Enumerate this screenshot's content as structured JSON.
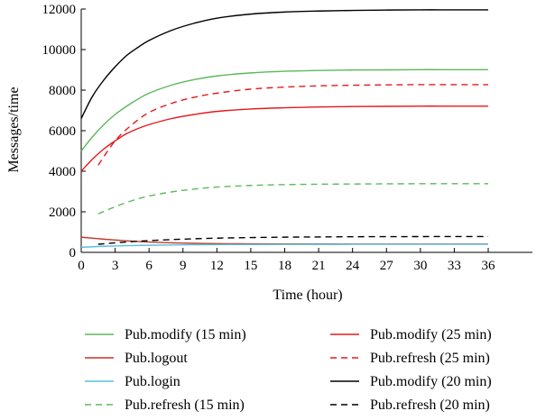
{
  "chart_data": {
    "type": "line",
    "title": "",
    "xlabel": "Time (hour)",
    "ylabel": "Messages/time",
    "xlim": [
      0,
      36
    ],
    "ylim": [
      0,
      12000
    ],
    "x_ticks": [
      0,
      3,
      6,
      9,
      12,
      15,
      18,
      21,
      24,
      27,
      30,
      33,
      36
    ],
    "y_ticks": [
      0,
      2000,
      4000,
      6000,
      8000,
      10000,
      12000
    ],
    "grid": false,
    "legend_position": "bottom",
    "series": [
      {
        "name": "Pub.modify (15 min)",
        "color": "#5cb85c",
        "dash": "solid",
        "x": [
          0,
          1,
          2,
          3,
          4,
          5,
          6,
          8,
          10,
          12,
          15,
          18,
          21,
          24,
          27,
          30,
          33,
          36
        ],
        "y": [
          5000,
          5700,
          6300,
          6800,
          7200,
          7550,
          7850,
          8250,
          8520,
          8700,
          8850,
          8930,
          8970,
          8990,
          9000,
          9010,
          9010,
          9010
        ]
      },
      {
        "name": "Pub.logout",
        "color": "#c0392b",
        "dash": "solid",
        "x": [
          0,
          2,
          4,
          6,
          8,
          10,
          12,
          15,
          18,
          21,
          24,
          27,
          30,
          33,
          36
        ],
        "y": [
          750,
          650,
          570,
          510,
          470,
          445,
          430,
          420,
          415,
          412,
          410,
          410,
          410,
          410,
          410
        ]
      },
      {
        "name": "Pub.login",
        "color": "#5bc0de",
        "dash": "solid",
        "x": [
          0,
          2,
          4,
          6,
          8,
          10,
          12,
          15,
          18,
          21,
          24,
          27,
          30,
          33,
          36
        ],
        "y": [
          250,
          300,
          330,
          350,
          365,
          375,
          382,
          388,
          392,
          394,
          395,
          396,
          396,
          396,
          396
        ]
      },
      {
        "name": "Pub.refresh (15 min)",
        "color": "#5cb85c",
        "dash": "dashed",
        "x": [
          1.5,
          3,
          4.5,
          6,
          8,
          10,
          12,
          15,
          18,
          21,
          24,
          27,
          30,
          33,
          36
        ],
        "y": [
          1900,
          2250,
          2550,
          2780,
          2980,
          3120,
          3220,
          3300,
          3340,
          3360,
          3370,
          3380,
          3385,
          3385,
          3385
        ]
      },
      {
        "name": "Pub.modify (25 min)",
        "color": "#e41a1c",
        "dash": "solid",
        "x": [
          0,
          1,
          2,
          3,
          4,
          5,
          6,
          8,
          10,
          12,
          15,
          18,
          21,
          24,
          27,
          30,
          33,
          36
        ],
        "y": [
          4000,
          4600,
          5100,
          5500,
          5850,
          6100,
          6300,
          6600,
          6800,
          6950,
          7070,
          7130,
          7170,
          7190,
          7200,
          7210,
          7210,
          7210
        ]
      },
      {
        "name": "Pub.refresh (25 min)",
        "color": "#e41a1c",
        "dash": "dashed",
        "x": [
          1.5,
          3,
          4.5,
          6,
          8,
          10,
          12,
          15,
          18,
          21,
          24,
          27,
          30,
          33,
          36
        ],
        "y": [
          4300,
          5500,
          6300,
          6900,
          7350,
          7650,
          7850,
          8050,
          8150,
          8210,
          8240,
          8260,
          8270,
          8270,
          8270
        ]
      },
      {
        "name": "Pub.modify (20 min)",
        "color": "#000000",
        "dash": "solid",
        "x": [
          0,
          1,
          2,
          3,
          4,
          5,
          6,
          8,
          10,
          12,
          15,
          18,
          21,
          24,
          27,
          30,
          33,
          36
        ],
        "y": [
          6600,
          7700,
          8500,
          9150,
          9700,
          10100,
          10450,
          10950,
          11300,
          11550,
          11750,
          11850,
          11900,
          11930,
          11950,
          11960,
          11960,
          11960
        ]
      },
      {
        "name": "Pub.refresh (20 min)",
        "color": "#000000",
        "dash": "dashed",
        "x": [
          1.5,
          3,
          4.5,
          6,
          8,
          10,
          12,
          15,
          18,
          21,
          24,
          27,
          30,
          33,
          36
        ],
        "y": [
          400,
          470,
          530,
          580,
          630,
          670,
          700,
          730,
          750,
          760,
          770,
          775,
          778,
          780,
          780
        ]
      }
    ]
  }
}
